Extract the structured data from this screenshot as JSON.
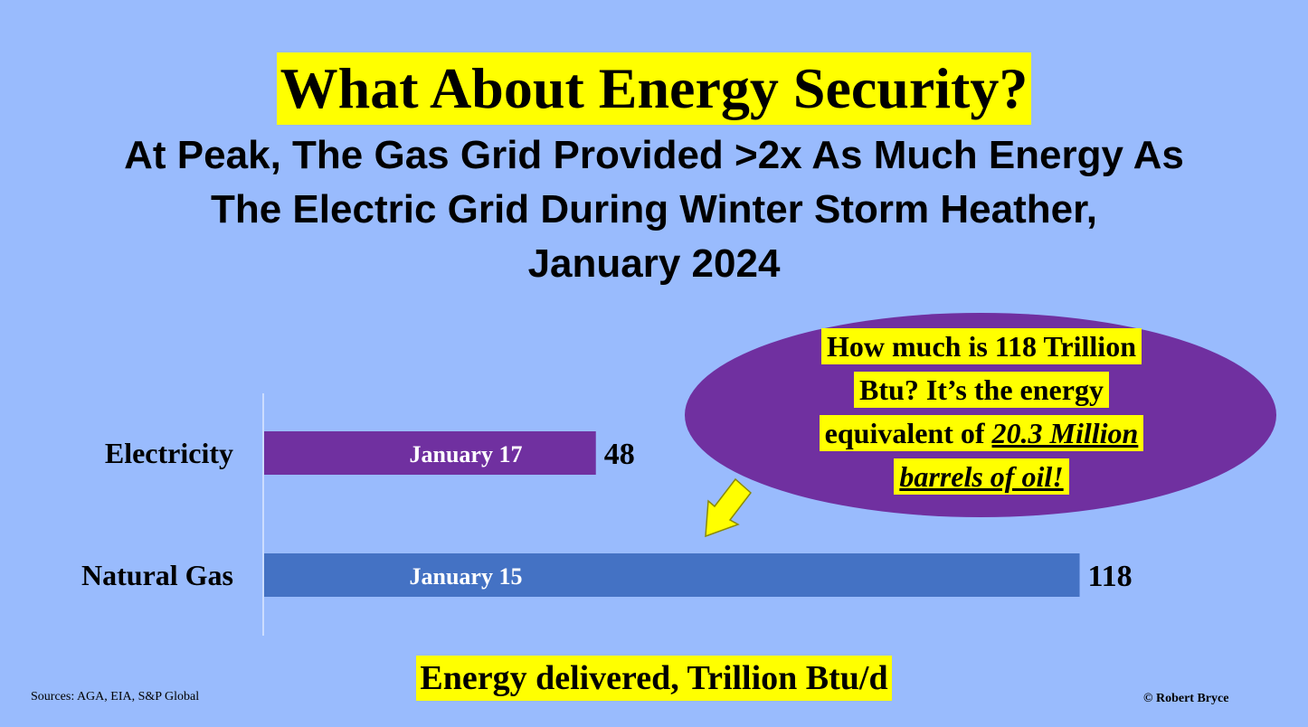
{
  "title": "What About Energy Security?",
  "subtitle": {
    "line1": "At Peak, The Gas Grid Provided >2x As Much Energy As",
    "line2": "The Electric Grid During Winter Storm Heather,",
    "line3": "January 2024"
  },
  "callout": {
    "line1": "How much is 118 Trillion",
    "line2": "Btu? It’s the energy",
    "line3_prefix": "equivalent of ",
    "line3_emph": "20.3 Million",
    "line4_emph": "barrels of oil!"
  },
  "sources": "Sources: AGA, EIA, S&P Global",
  "credit": "© Robert Bryce",
  "colors": {
    "background": "#99bbfd",
    "highlight": "#ffff00",
    "electricity_bar": "#7030a0",
    "gas_bar": "#4472c4",
    "callout_bubble": "#7030a0"
  },
  "chart_data": {
    "type": "bar",
    "orientation": "horizontal",
    "xlabel": "Energy delivered, Trillion Btu/d",
    "categories": [
      "Electricity",
      "Natural Gas"
    ],
    "values": [
      48,
      118
    ],
    "bar_labels": [
      "January 17",
      "January 15"
    ],
    "value_labels": [
      "48",
      "118"
    ],
    "xlim": [
      0,
      140
    ],
    "grid": false,
    "legend": "none"
  }
}
